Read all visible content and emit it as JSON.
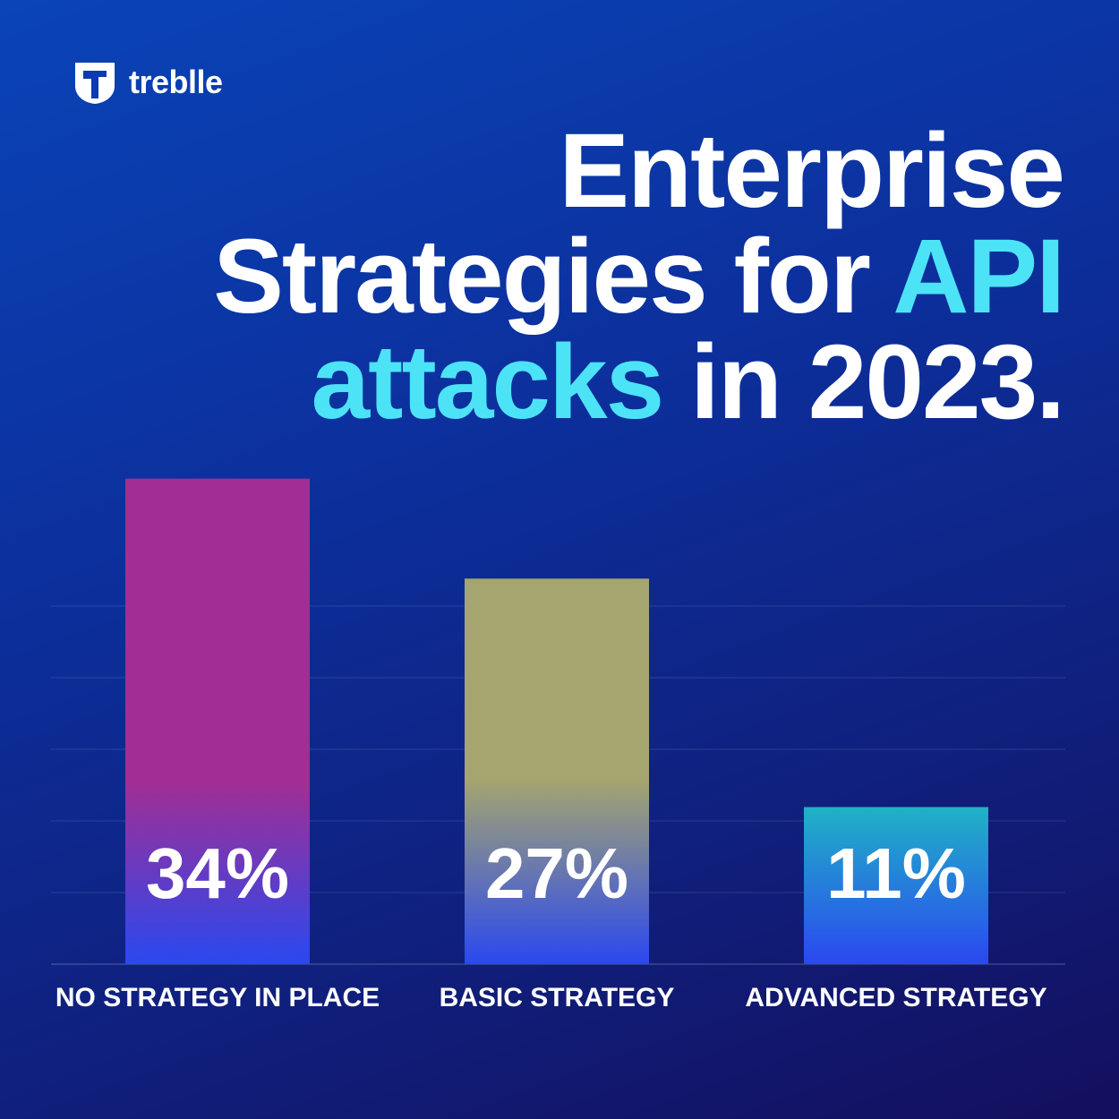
{
  "brand": {
    "name": "treblle",
    "icon": "treblle-logo-icon"
  },
  "title": {
    "line1": "Enterprise",
    "line2_plain": "Strategies for ",
    "line2_highlight": "API",
    "line3_highlight": "attacks",
    "line3_plain": " in 2023."
  },
  "colors": {
    "background": "#0c2f9c",
    "highlight": "#4ce3f7",
    "text": "#ffffff"
  },
  "chart_data": {
    "type": "bar",
    "categories": [
      "NO STRATEGY IN PLACE",
      "BASIC STRATEGY",
      "ADVANCED STRATEGY"
    ],
    "values": [
      34,
      27,
      11
    ],
    "value_labels": [
      "34%",
      "27%",
      "11%"
    ],
    "bar_colors": [
      "#a22e93",
      "#a4a56f",
      "#20b2c6"
    ],
    "bar_base_color": "#2a48f0",
    "ylim": [
      0,
      30
    ],
    "grid": true
  }
}
